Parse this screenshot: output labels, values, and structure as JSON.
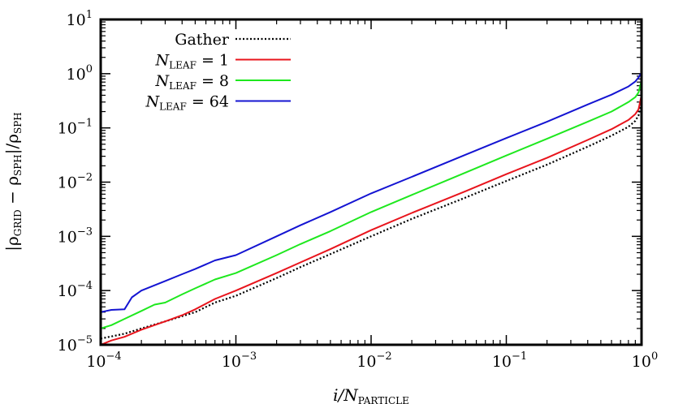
{
  "chart_data": {
    "type": "line",
    "title": "",
    "x_scale": "log",
    "y_scale": "log",
    "xlim": [
      0.0001,
      1
    ],
    "ylim": [
      1e-05,
      10
    ],
    "x_ticks": [
      {
        "base": "10",
        "exp": "−4"
      },
      {
        "base": "10",
        "exp": "−3"
      },
      {
        "base": "10",
        "exp": "−2"
      },
      {
        "base": "10",
        "exp": "−1"
      },
      {
        "base": "10",
        "exp": "0"
      }
    ],
    "y_ticks": [
      {
        "base": "10",
        "exp": "−5"
      },
      {
        "base": "10",
        "exp": "−4"
      },
      {
        "base": "10",
        "exp": "−3"
      },
      {
        "base": "10",
        "exp": "−2"
      },
      {
        "base": "10",
        "exp": "−1"
      },
      {
        "base": "10",
        "exp": "0"
      },
      {
        "base": "10",
        "exp": "1"
      }
    ],
    "xlabel": {
      "main": "i/N",
      "sub": "PARTICLE"
    },
    "ylabel": {
      "p1": "|ρ",
      "s1": "GRID",
      "p2": " − ρ",
      "s2": "SPH",
      "p3": "|/ρ",
      "s3": "SPH"
    },
    "grid": false,
    "legend_position": "top-left",
    "series": [
      {
        "name": "Gather",
        "legend_main": "Gather",
        "legend_sub": "",
        "legend_tail": "",
        "color": "#000000",
        "dash": "dotted",
        "x": [
          0.0001,
          0.00015,
          0.0002,
          0.0003,
          0.0005,
          0.0007,
          0.001,
          0.002,
          0.003,
          0.005,
          0.01,
          0.02,
          0.05,
          0.1,
          0.2,
          0.4,
          0.6,
          0.8,
          0.9,
          0.95,
          1.0
        ],
        "y": [
          1.3e-05,
          1.6e-05,
          2e-05,
          2.7e-05,
          4e-05,
          6e-05,
          8e-05,
          0.00017,
          0.00027,
          0.00047,
          0.001,
          0.0021,
          0.0052,
          0.0105,
          0.021,
          0.045,
          0.072,
          0.105,
          0.135,
          0.17,
          0.3
        ]
      },
      {
        "name": "N_LEAF = 1",
        "legend_main": "N",
        "legend_sub": "LEAF",
        "legend_tail": " = 1",
        "color": "#e8141c",
        "dash": "solid",
        "x": [
          0.0001,
          0.00012,
          0.00015,
          0.0002,
          0.0003,
          0.0004,
          0.0005,
          0.0007,
          0.001,
          0.002,
          0.003,
          0.005,
          0.01,
          0.02,
          0.05,
          0.1,
          0.2,
          0.4,
          0.6,
          0.8,
          0.9,
          0.95,
          1.0
        ],
        "y": [
          1e-05,
          1.2e-05,
          1.4e-05,
          1.9e-05,
          2.7e-05,
          3.5e-05,
          4.5e-05,
          7e-05,
          0.0001,
          0.00021,
          0.00033,
          0.00058,
          0.0013,
          0.0027,
          0.0068,
          0.014,
          0.028,
          0.06,
          0.095,
          0.14,
          0.18,
          0.22,
          0.4
        ]
      },
      {
        "name": "N_LEAF = 8",
        "legend_main": "N",
        "legend_sub": "LEAF",
        "legend_tail": " = 8",
        "color": "#1ee81e",
        "dash": "solid",
        "x": [
          0.0001,
          0.00012,
          0.00015,
          0.0002,
          0.00025,
          0.0003,
          0.0004,
          0.0005,
          0.0007,
          0.001,
          0.002,
          0.003,
          0.005,
          0.01,
          0.02,
          0.05,
          0.1,
          0.2,
          0.4,
          0.6,
          0.8,
          0.9,
          0.95,
          1.0
        ],
        "y": [
          2e-05,
          2.3e-05,
          3e-05,
          4.2e-05,
          5.5e-05,
          6e-05,
          8.5e-05,
          0.00011,
          0.00016,
          0.00021,
          0.00045,
          0.00072,
          0.00125,
          0.0028,
          0.0058,
          0.015,
          0.031,
          0.063,
          0.13,
          0.2,
          0.3,
          0.37,
          0.45,
          0.75
        ]
      },
      {
        "name": "N_LEAF = 64",
        "legend_main": "N",
        "legend_sub": "LEAF",
        "legend_tail": " = 64",
        "color": "#1414d2",
        "dash": "solid",
        "x": [
          0.0001,
          0.00012,
          0.00015,
          0.00017,
          0.0002,
          0.0003,
          0.0004,
          0.0005,
          0.0007,
          0.001,
          0.002,
          0.003,
          0.005,
          0.01,
          0.02,
          0.05,
          0.1,
          0.2,
          0.4,
          0.6,
          0.8,
          0.9,
          0.95,
          1.0
        ],
        "y": [
          4e-05,
          4.4e-05,
          4.5e-05,
          7.5e-05,
          0.0001,
          0.00015,
          0.0002,
          0.00025,
          0.00036,
          0.00045,
          0.001,
          0.0016,
          0.0028,
          0.0062,
          0.0125,
          0.032,
          0.065,
          0.13,
          0.27,
          0.41,
          0.58,
          0.72,
          0.85,
          1.05
        ]
      }
    ]
  }
}
